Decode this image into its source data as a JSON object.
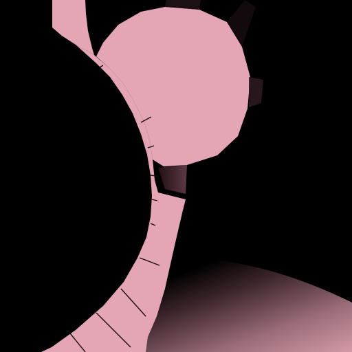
{
  "scene": {
    "background_color": "#000000",
    "track_color": "#e4a5b4",
    "track_edge_color": "#3a1e26",
    "floor_color_light": "#d39aa6",
    "floor_color_dark": "#000000"
  }
}
